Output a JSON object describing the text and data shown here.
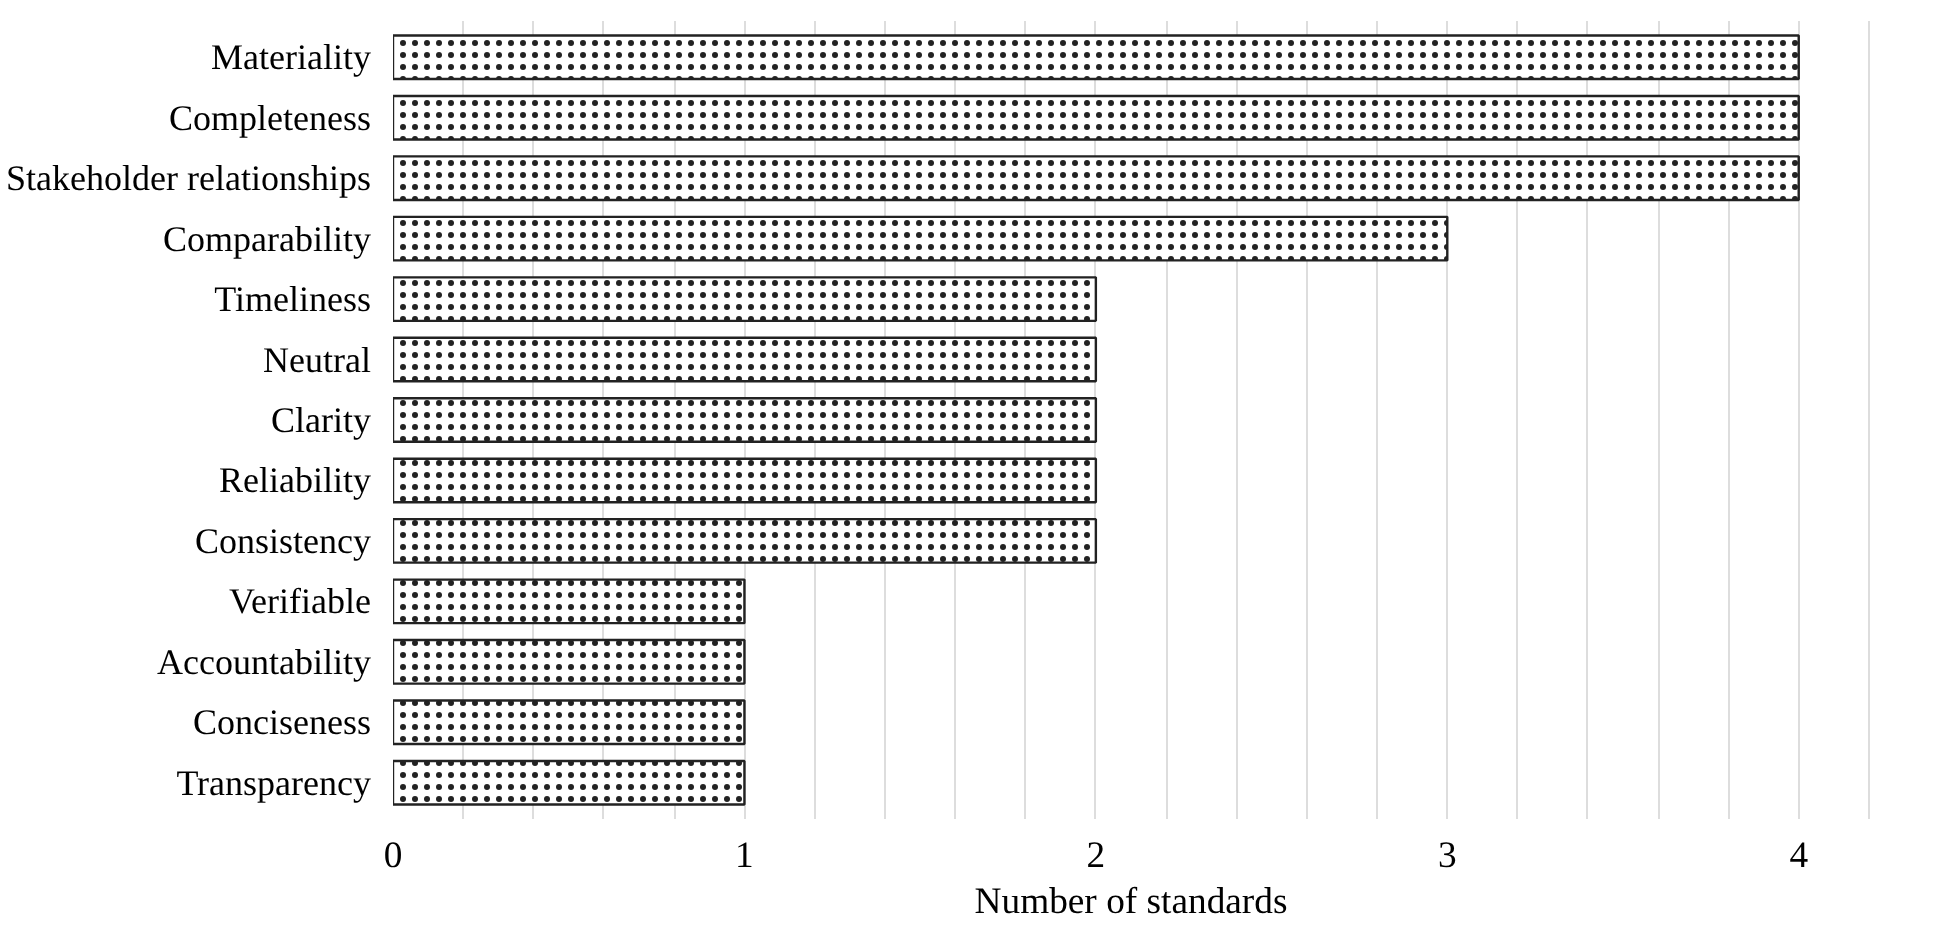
{
  "chart_data": {
    "type": "bar",
    "orientation": "horizontal",
    "xlabel": "Number of standards",
    "categories": [
      "Materiality",
      "Completeness",
      "Stakeholder relationships",
      "Comparability",
      "Timeliness",
      "Neutral",
      "Clarity",
      "Reliability",
      "Consistency",
      "Verifiable",
      "Accountability",
      "Conciseness",
      "Transparency"
    ],
    "values": [
      4,
      4,
      4,
      3,
      2,
      2,
      2,
      2,
      2,
      1,
      1,
      1,
      1
    ],
    "color": "#222222",
    "xlim": [
      0,
      4.2
    ],
    "xticks": [
      0,
      {
        "value": 0.2,
        "label": null
      },
      {
        "value": 0.4,
        "label": null
      },
      {
        "value": 0.6,
        "label": null
      },
      {
        "value": 0.8,
        "label": null
      },
      1,
      {
        "value": 1.2,
        "label": null
      },
      {
        "value": 1.4,
        "label": null
      },
      {
        "value": 1.6,
        "label": null
      },
      {
        "value": 1.8,
        "label": null
      },
      2,
      {
        "value": 2.2,
        "label": null
      },
      {
        "value": 2.4,
        "label": null
      },
      {
        "value": 2.6,
        "label": null
      },
      {
        "value": 2.8,
        "label": null
      },
      3,
      {
        "value": 3.2,
        "label": null
      },
      {
        "value": 3.4,
        "label": null
      },
      {
        "value": 3.6,
        "label": null
      },
      {
        "value": 3.8,
        "label": null
      },
      4,
      {
        "value": 4.2,
        "label": null
      }
    ],
    "grid": "x"
  }
}
